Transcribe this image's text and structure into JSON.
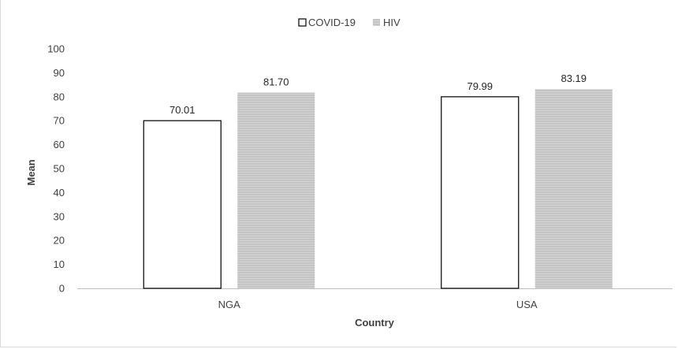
{
  "chart_data": {
    "type": "bar",
    "categories": [
      "NGA",
      "USA"
    ],
    "series": [
      {
        "name": "COVID-19",
        "values": [
          70.01,
          79.99
        ],
        "labels": [
          "70.01",
          "79.99"
        ],
        "fill": "#ffffff",
        "stroke": "#000000"
      },
      {
        "name": "HIV",
        "values": [
          81.7,
          83.19
        ],
        "labels": [
          "81.70",
          "83.19"
        ],
        "fill": "#c8c8c8",
        "stroke": "#c8c8c8"
      }
    ],
    "xlabel": "Country",
    "ylabel": "Mean",
    "ylim": [
      0,
      100
    ],
    "yticks": [
      "0",
      "10",
      "20",
      "30",
      "40",
      "50",
      "60",
      "70",
      "80",
      "90",
      "100"
    ],
    "grid": false,
    "legend": "top-center"
  }
}
